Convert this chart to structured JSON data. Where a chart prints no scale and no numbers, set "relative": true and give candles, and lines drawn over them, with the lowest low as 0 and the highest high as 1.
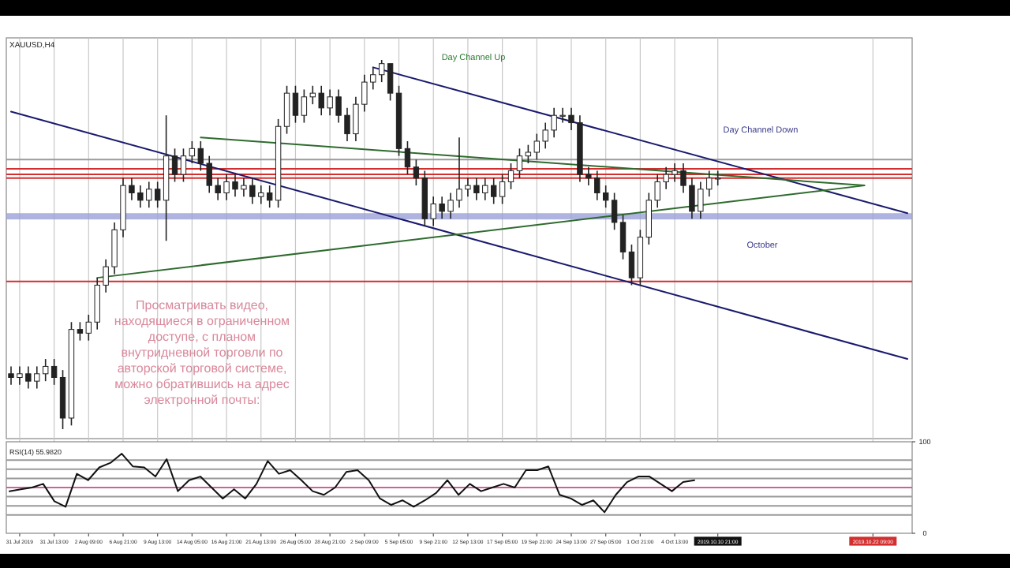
{
  "chart_data": [
    {
      "type": "candlestick",
      "title": "XAUUSD,H4",
      "relative": true,
      "grid": "x",
      "categories": [
        null,
        "31 Jul 2019",
        null,
        null,
        null,
        "31 Jul 13:00",
        null,
        null,
        null,
        "2 Aug 09:00",
        null,
        null,
        null,
        "6 Aug 21:00",
        null,
        null,
        null,
        "9 Aug 13:00",
        null,
        null,
        null,
        "14 Aug 05:00",
        null,
        null,
        null,
        "16 Aug 21:00",
        null,
        null,
        null,
        "21 Aug 13:00",
        null,
        null,
        null,
        "26 Aug 05:00",
        null,
        null,
        null,
        "28 Aug 21:00",
        null,
        null,
        null,
        "2 Sep 09:00",
        null,
        null,
        null,
        "5 Sep 05:00",
        null,
        null,
        null,
        "9 Sep 21:00",
        null,
        null,
        null,
        "12 Sep 13:00",
        null,
        null,
        null,
        "17 Sep 05:00",
        null,
        null,
        null,
        "19 Sep 21:00",
        null,
        null,
        null,
        "24 Sep 13:00",
        null,
        null,
        null,
        "27 Sep 05:00",
        null,
        null,
        null,
        "1 Oct 21:00",
        null,
        null,
        null,
        "4 Oct 13:00",
        null,
        null,
        null,
        null,
        "2019.10.10 21:00",
        null,
        null,
        null,
        null,
        null,
        null,
        null,
        null,
        null,
        null,
        null,
        null,
        null,
        null,
        null,
        null,
        null,
        "2019.10.22 09:00",
        null,
        null,
        null,
        null
      ],
      "ohlc": [
        [
          0.15,
          0.17,
          0.12,
          0.14
        ],
        [
          0.14,
          0.17,
          0.12,
          0.15
        ],
        [
          0.15,
          0.17,
          0.11,
          0.13
        ],
        [
          0.13,
          0.17,
          0.11,
          0.15
        ],
        [
          0.15,
          0.19,
          0.13,
          0.17
        ],
        [
          0.17,
          0.19,
          0.12,
          0.14
        ],
        [
          0.14,
          0.16,
          0.0,
          0.03
        ],
        [
          0.03,
          0.29,
          0.01,
          0.27
        ],
        [
          0.27,
          0.29,
          0.24,
          0.26
        ],
        [
          0.26,
          0.31,
          0.24,
          0.29
        ],
        [
          0.29,
          0.41,
          0.27,
          0.39
        ],
        [
          0.39,
          0.46,
          0.37,
          0.44
        ],
        [
          0.44,
          0.56,
          0.42,
          0.54
        ],
        [
          0.54,
          0.68,
          0.52,
          0.66
        ],
        [
          0.66,
          0.68,
          0.62,
          0.64
        ],
        [
          0.64,
          0.66,
          0.6,
          0.62
        ],
        [
          0.62,
          0.67,
          0.6,
          0.65
        ],
        [
          0.65,
          0.67,
          0.6,
          0.62
        ],
        [
          0.62,
          0.85,
          0.51,
          0.74
        ],
        [
          0.74,
          0.76,
          0.67,
          0.69
        ],
        [
          0.69,
          0.76,
          0.67,
          0.74
        ],
        [
          0.74,
          0.78,
          0.72,
          0.76
        ],
        [
          0.76,
          0.78,
          0.7,
          0.72
        ],
        [
          0.72,
          0.74,
          0.64,
          0.66
        ],
        [
          0.66,
          0.68,
          0.62,
          0.64
        ],
        [
          0.64,
          0.69,
          0.62,
          0.67
        ],
        [
          0.67,
          0.69,
          0.63,
          0.65
        ],
        [
          0.65,
          0.68,
          0.63,
          0.66
        ],
        [
          0.66,
          0.68,
          0.61,
          0.63
        ],
        [
          0.63,
          0.66,
          0.61,
          0.64
        ],
        [
          0.64,
          0.66,
          0.6,
          0.62
        ],
        [
          0.62,
          0.84,
          0.6,
          0.82
        ],
        [
          0.82,
          0.93,
          0.8,
          0.91
        ],
        [
          0.91,
          0.93,
          0.83,
          0.85
        ],
        [
          0.85,
          0.92,
          0.83,
          0.9
        ],
        [
          0.9,
          0.93,
          0.88,
          0.91
        ],
        [
          0.91,
          0.93,
          0.85,
          0.87
        ],
        [
          0.87,
          0.92,
          0.85,
          0.9
        ],
        [
          0.9,
          0.92,
          0.83,
          0.85
        ],
        [
          0.85,
          0.87,
          0.78,
          0.8
        ],
        [
          0.8,
          0.9,
          0.78,
          0.88
        ],
        [
          0.88,
          0.96,
          0.86,
          0.94
        ],
        [
          0.94,
          0.98,
          0.92,
          0.96
        ],
        [
          0.96,
          1.0,
          0.94,
          0.99
        ],
        [
          0.99,
          0.99,
          0.89,
          0.91
        ],
        [
          0.91,
          0.93,
          0.74,
          0.76
        ],
        [
          0.76,
          0.78,
          0.69,
          0.71
        ],
        [
          0.71,
          0.73,
          0.66,
          0.68
        ],
        [
          0.68,
          0.7,
          0.55,
          0.57
        ],
        [
          0.57,
          0.63,
          0.55,
          0.61
        ],
        [
          0.61,
          0.63,
          0.57,
          0.59
        ],
        [
          0.59,
          0.64,
          0.57,
          0.62
        ],
        [
          0.62,
          0.79,
          0.6,
          0.65
        ],
        [
          0.65,
          0.68,
          0.63,
          0.66
        ],
        [
          0.66,
          0.68,
          0.62,
          0.64
        ],
        [
          0.64,
          0.68,
          0.62,
          0.66
        ],
        [
          0.66,
          0.68,
          0.61,
          0.63
        ],
        [
          0.63,
          0.69,
          0.61,
          0.67
        ],
        [
          0.67,
          0.72,
          0.65,
          0.7
        ],
        [
          0.7,
          0.76,
          0.68,
          0.74
        ],
        [
          0.74,
          0.77,
          0.72,
          0.75
        ],
        [
          0.75,
          0.8,
          0.73,
          0.78
        ],
        [
          0.78,
          0.83,
          0.76,
          0.81
        ],
        [
          0.81,
          0.87,
          0.79,
          0.85
        ],
        [
          0.85,
          0.87,
          0.83,
          0.85
        ],
        [
          0.85,
          0.87,
          0.81,
          0.83
        ],
        [
          0.83,
          0.85,
          0.67,
          0.69
        ],
        [
          0.69,
          0.71,
          0.66,
          0.68
        ],
        [
          0.68,
          0.7,
          0.62,
          0.64
        ],
        [
          0.64,
          0.66,
          0.6,
          0.62
        ],
        [
          0.62,
          0.64,
          0.54,
          0.56
        ],
        [
          0.56,
          0.58,
          0.46,
          0.48
        ],
        [
          0.48,
          0.5,
          0.39,
          0.41
        ],
        [
          0.41,
          0.54,
          0.39,
          0.52
        ],
        [
          0.52,
          0.64,
          0.5,
          0.62
        ],
        [
          0.62,
          0.69,
          0.6,
          0.67
        ],
        [
          0.67,
          0.71,
          0.65,
          0.69
        ],
        [
          0.69,
          0.72,
          0.67,
          0.7
        ],
        [
          0.7,
          0.72,
          0.64,
          0.66
        ],
        [
          0.66,
          0.68,
          0.57,
          0.59
        ],
        [
          0.59,
          0.67,
          0.57,
          0.65
        ],
        [
          0.65,
          0.7,
          0.63,
          0.68
        ],
        [
          0.68,
          0.7,
          0.66,
          0.68
        ],
        null,
        null,
        null,
        null,
        null,
        null,
        null,
        null,
        null,
        null,
        null,
        null,
        null,
        null,
        null,
        null,
        null,
        null,
        null,
        null,
        null,
        null
      ],
      "series": [
        {
          "type": "line",
          "color": "#1a1a6e",
          "values": [
            null,
            null,
            null,
            null,
            null,
            null,
            null,
            null,
            null,
            null,
            null,
            null,
            null,
            null,
            null,
            null,
            null,
            null,
            null,
            null,
            null,
            null,
            null,
            null,
            null,
            null,
            null,
            null,
            null,
            null,
            null,
            null,
            null,
            null,
            null,
            null,
            null,
            null,
            null,
            null,
            null,
            null,
            0.98,
            null,
            null,
            null,
            null,
            null,
            null,
            null,
            null,
            null,
            null,
            null,
            null,
            null,
            null,
            null,
            null,
            null,
            null,
            null,
            null,
            null,
            null,
            null,
            null,
            null,
            null,
            null,
            null,
            null,
            null,
            null,
            null,
            null,
            null,
            null,
            null,
            null,
            null,
            null,
            null,
            null,
            null,
            null,
            null,
            null,
            null,
            null,
            null,
            null,
            null,
            null,
            null,
            null,
            null,
            null,
            null,
            null,
            null,
            null,
            null,
            null,
            0.585
          ]
        },
        {
          "type": "line",
          "color": "#1a1a6e",
          "values": [
            0.86,
            null,
            null,
            null,
            null,
            null,
            null,
            null,
            null,
            null,
            null,
            null,
            null,
            null,
            null,
            null,
            null,
            null,
            null,
            null,
            null,
            null,
            null,
            null,
            null,
            null,
            null,
            null,
            null,
            null,
            null,
            null,
            null,
            null,
            null,
            null,
            null,
            null,
            null,
            null,
            null,
            null,
            null,
            null,
            null,
            null,
            null,
            null,
            null,
            null,
            null,
            null,
            null,
            null,
            null,
            null,
            null,
            null,
            null,
            null,
            null,
            null,
            null,
            null,
            null,
            null,
            null,
            null,
            null,
            null,
            null,
            null,
            null,
            null,
            null,
            null,
            null,
            null,
            null,
            null,
            null,
            null,
            null,
            null,
            null,
            null,
            null,
            null,
            null,
            null,
            null,
            null,
            null,
            null,
            null,
            null,
            null,
            null,
            null,
            null,
            null,
            null,
            null,
            null,
            0.19
          ]
        },
        {
          "type": "line",
          "color": "#2e6b2e",
          "values": [
            null,
            null,
            null,
            null,
            null,
            null,
            null,
            null,
            null,
            null,
            0.41,
            null,
            null,
            null,
            null,
            null,
            null,
            null,
            null,
            null,
            null,
            null,
            null,
            null,
            null,
            null,
            null,
            null,
            null,
            null,
            null,
            null,
            null,
            null,
            null,
            null,
            null,
            null,
            null,
            null,
            null,
            null,
            null,
            null,
            null,
            null,
            null,
            null,
            null,
            null,
            null,
            null,
            null,
            null,
            null,
            null,
            null,
            null,
            null,
            null,
            null,
            null,
            null,
            null,
            null,
            null,
            null,
            null,
            null,
            null,
            null,
            null,
            null,
            null,
            null,
            null,
            null,
            null,
            null,
            null,
            null,
            null,
            null,
            null,
            null,
            null,
            null,
            null,
            null,
            null,
            null,
            null,
            null,
            null,
            null,
            null,
            null,
            null,
            null,
            0.66,
            null,
            null,
            null,
            null,
            null
          ]
        },
        {
          "type": "line",
          "color": "#2e6b2e",
          "values": [
            null,
            null,
            null,
            null,
            null,
            null,
            null,
            null,
            null,
            null,
            null,
            null,
            null,
            null,
            null,
            null,
            null,
            null,
            null,
            null,
            null,
            null,
            0.79,
            null,
            null,
            null,
            null,
            null,
            null,
            null,
            null,
            null,
            null,
            null,
            null,
            null,
            null,
            null,
            null,
            null,
            null,
            null,
            null,
            null,
            null,
            null,
            null,
            null,
            null,
            null,
            null,
            null,
            null,
            null,
            null,
            null,
            null,
            null,
            null,
            null,
            null,
            null,
            null,
            null,
            null,
            null,
            null,
            null,
            null,
            null,
            null,
            null,
            null,
            null,
            null,
            null,
            null,
            null,
            null,
            null,
            null,
            null,
            null,
            null,
            null,
            null,
            null,
            null,
            null,
            null,
            null,
            null,
            null,
            null,
            null,
            null,
            null,
            null,
            null,
            0.66,
            null,
            null,
            null,
            null,
            null
          ]
        }
      ],
      "ref_lines": [
        {
          "axis": "y",
          "value": 0.73,
          "color": "#9a9a9a"
        },
        {
          "axis": "y",
          "value": 0.705,
          "color": "#d32f2f"
        },
        {
          "axis": "y",
          "value": 0.69,
          "color": "#d32f2f"
        },
        {
          "axis": "y",
          "value": 0.68,
          "color": "#d32f2f"
        },
        {
          "axis": "y",
          "value": 0.4,
          "color": "#d32f2f"
        }
      ],
      "bands": [
        {
          "axis": "y",
          "from": 0.568,
          "to": 0.585,
          "color": "#9aa0d8"
        }
      ],
      "annotations": [
        "Day Channel Up",
        "Day Channel Down",
        "October",
        "Просматривать видео,\nнаходящиеся в ограниченном\nдоступе,  с планом\nвнутридневной торговли по\nавторской торговой системе,\nможно обратившись на адрес\nэлектронной почты:"
      ]
    },
    {
      "type": "line",
      "title": "RSI(14) 55.9820",
      "ylim": [
        0,
        100
      ],
      "yticks": [
        0,
        100
      ],
      "categories": [
        null,
        null,
        null,
        null,
        null,
        null,
        null,
        null,
        null,
        null,
        null,
        null,
        null,
        null,
        null,
        null,
        null,
        null,
        null,
        null,
        null,
        null,
        null,
        null,
        null,
        null,
        null,
        null,
        null,
        null,
        null,
        null,
        null,
        null,
        null,
        null,
        null,
        null,
        null,
        null,
        null,
        null,
        null,
        null,
        null,
        null,
        null,
        null,
        null,
        null,
        null,
        null,
        null,
        null,
        null,
        null,
        null,
        null,
        null,
        null,
        null,
        null
      ],
      "series": [
        {
          "color": "#111111",
          "values": [
            46,
            48,
            50,
            54,
            35,
            29,
            65,
            58,
            72,
            77,
            87,
            73,
            72,
            62,
            81,
            46,
            58,
            62,
            50,
            38,
            48,
            38,
            54,
            79,
            65,
            69,
            58,
            46,
            42,
            50,
            67,
            69,
            58,
            38,
            31,
            36,
            29,
            36,
            44,
            58,
            42,
            54,
            46,
            50,
            54,
            50,
            69,
            69,
            73,
            42,
            38,
            31,
            36,
            23,
            42,
            56,
            62,
            62,
            54,
            46,
            56,
            58
          ]
        }
      ],
      "ref_lines": [
        {
          "axis": "y",
          "value": 80,
          "color": "#9a9a9a"
        },
        {
          "axis": "y",
          "value": 70,
          "color": "#9a9a9a"
        },
        {
          "axis": "y",
          "value": 60,
          "color": "#9a9a9a"
        },
        {
          "axis": "y",
          "value": 50,
          "color": "#d0609a"
        },
        {
          "axis": "y",
          "value": 40,
          "color": "#9a9a9a"
        },
        {
          "axis": "y",
          "value": 30,
          "color": "#9a9a9a"
        },
        {
          "axis": "y",
          "value": 20,
          "color": "#9a9a9a"
        }
      ]
    }
  ]
}
